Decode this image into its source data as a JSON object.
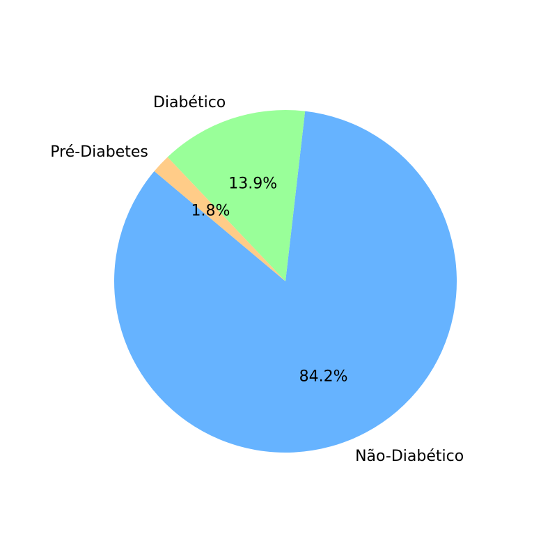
{
  "chart_data": {
    "type": "pie",
    "title": "",
    "categories": [
      "Não-Diabético",
      "Diabético",
      "Pré-Diabetes"
    ],
    "values": [
      84.2,
      13.9,
      1.8
    ],
    "percent_labels": [
      "84.2%",
      "13.9%",
      "1.8%"
    ],
    "colors": [
      "#66b3ff",
      "#99ff99",
      "#ffcc88"
    ],
    "start_angle_deg": 140,
    "direction": "counterclockwise",
    "legend": "none"
  }
}
